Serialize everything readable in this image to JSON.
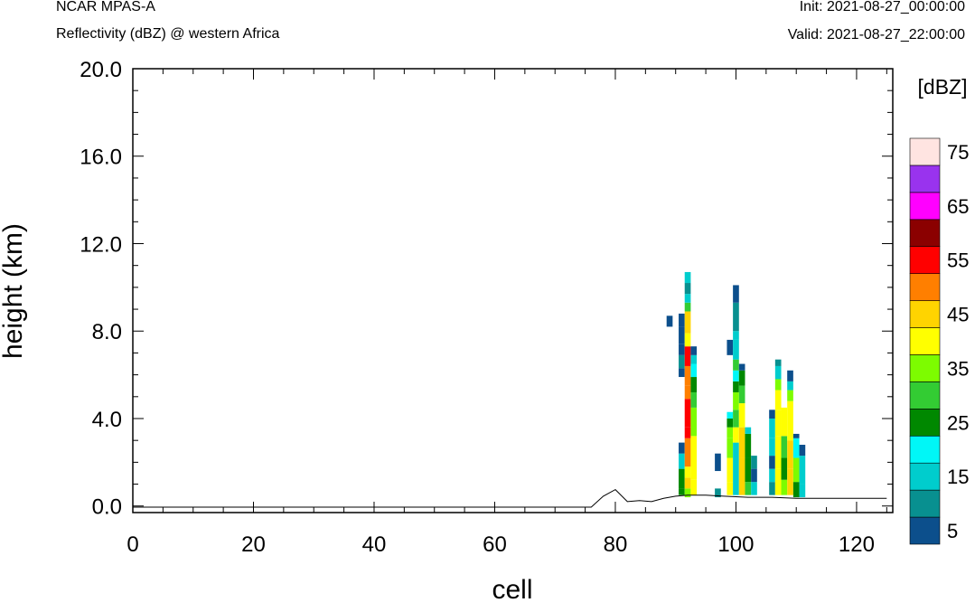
{
  "header": {
    "left_line1": "NCAR MPAS-A",
    "left_line2": "Reflectivity (dBZ) @ western Africa",
    "right_line1": "Init: 2021-08-27_00:00:00",
    "right_line2": "Valid: 2021-08-27_22:00:00"
  },
  "chart_data": {
    "type": "heatmap",
    "xlabel": "cell",
    "ylabel": "height (km)",
    "xlim": [
      0,
      126
    ],
    "ylim": [
      -0.3,
      20.0
    ],
    "x_ticks": [
      0,
      20,
      40,
      60,
      80,
      100,
      120
    ],
    "x_tick_labels": [
      "0",
      "20",
      "40",
      "60",
      "80",
      "100",
      "120"
    ],
    "y_ticks": [
      0,
      4,
      8,
      12,
      16,
      20
    ],
    "y_tick_labels": [
      "0.0",
      "4.0",
      "8.0",
      "12.0",
      "16.0",
      "20.0"
    ],
    "grid": false,
    "colorbar": {
      "unit_label": "[dBZ]",
      "levels": [
        5,
        10,
        15,
        20,
        25,
        30,
        35,
        40,
        45,
        50,
        55,
        60,
        65,
        70,
        75
      ],
      "colors": [
        "#0c4f8c",
        "#089090",
        "#00cdcd",
        "#00f7f7",
        "#008800",
        "#33cc33",
        "#7dfc00",
        "#ffff00",
        "#ffd400",
        "#ff7f00",
        "#ff0000",
        "#8b0000",
        "#ff00ff",
        "#9933ee",
        "#ffe4e1"
      ],
      "tick_labels": [
        "5",
        "15",
        "25",
        "35",
        "45",
        "55",
        "65",
        "75"
      ]
    },
    "terrain": [
      [
        0,
        -0.05
      ],
      [
        76,
        -0.05
      ],
      [
        78,
        0.45
      ],
      [
        80,
        0.75
      ],
      [
        82,
        0.2
      ],
      [
        84,
        0.25
      ],
      [
        86,
        0.2
      ],
      [
        88,
        0.35
      ],
      [
        90,
        0.45
      ],
      [
        92,
        0.5
      ],
      [
        95,
        0.5
      ],
      [
        98,
        0.45
      ],
      [
        102,
        0.4
      ],
      [
        106,
        0.4
      ],
      [
        110,
        0.35
      ],
      [
        115,
        0.35
      ],
      [
        120,
        0.35
      ],
      [
        125,
        0.35
      ]
    ],
    "reflectivity_columns": [
      {
        "x": 89,
        "cells": [
          [
            8.2,
            8.7,
            5
          ]
        ]
      },
      {
        "x": 91,
        "cells": [
          [
            0.5,
            0.8,
            25
          ],
          [
            0.8,
            1.7,
            25
          ],
          [
            1.7,
            2.4,
            15
          ],
          [
            2.4,
            2.9,
            5
          ],
          [
            5.9,
            6.3,
            5
          ],
          [
            6.3,
            6.9,
            10
          ],
          [
            6.9,
            7.4,
            5
          ],
          [
            7.4,
            8.2,
            5
          ],
          [
            8.2,
            8.8,
            5
          ]
        ]
      },
      {
        "x": 92,
        "cells": [
          [
            0.4,
            0.8,
            35
          ],
          [
            0.8,
            1.3,
            45
          ],
          [
            1.3,
            1.8,
            40
          ],
          [
            1.8,
            3.1,
            50
          ],
          [
            3.1,
            3.6,
            55
          ],
          [
            3.6,
            4.9,
            55
          ],
          [
            4.9,
            5.5,
            50
          ],
          [
            5.5,
            6.4,
            50
          ],
          [
            6.4,
            7.3,
            55
          ],
          [
            7.3,
            7.9,
            40
          ],
          [
            7.9,
            8.9,
            45
          ],
          [
            8.9,
            9.3,
            30
          ],
          [
            9.3,
            9.7,
            15
          ],
          [
            9.7,
            10.2,
            10
          ],
          [
            10.2,
            10.7,
            15
          ]
        ]
      },
      {
        "x": 93,
        "cells": [
          [
            0.5,
            1.2,
            40
          ],
          [
            1.2,
            3.2,
            40
          ],
          [
            3.2,
            4.5,
            35
          ],
          [
            4.5,
            5.2,
            30
          ],
          [
            5.2,
            5.9,
            25
          ],
          [
            5.9,
            6.5,
            20
          ],
          [
            6.5,
            6.9,
            15
          ],
          [
            6.9,
            7.3,
            5
          ]
        ]
      },
      {
        "x": 97,
        "cells": [
          [
            1.6,
            2.4,
            5
          ],
          [
            0.4,
            0.8,
            10
          ]
        ]
      },
      {
        "x": 99,
        "cells": [
          [
            0.5,
            1.1,
            40
          ],
          [
            1.1,
            2.2,
            40
          ],
          [
            2.2,
            3.1,
            35
          ],
          [
            3.1,
            3.6,
            35
          ],
          [
            3.6,
            4.0,
            25
          ],
          [
            4.0,
            4.3,
            20
          ],
          [
            6.9,
            7.6,
            5
          ]
        ]
      },
      {
        "x": 100,
        "cells": [
          [
            0.5,
            2.9,
            15
          ],
          [
            2.9,
            3.6,
            40
          ],
          [
            3.6,
            4.4,
            30
          ],
          [
            4.4,
            5.2,
            35
          ],
          [
            5.2,
            5.7,
            25
          ],
          [
            5.7,
            6.2,
            20
          ],
          [
            6.2,
            6.7,
            30
          ],
          [
            6.7,
            7.6,
            15
          ],
          [
            7.6,
            8.0,
            15
          ],
          [
            8.0,
            9.3,
            10
          ],
          [
            9.3,
            10.1,
            5
          ]
        ]
      },
      {
        "x": 101,
        "cells": [
          [
            0.5,
            2.2,
            45
          ],
          [
            2.2,
            3.6,
            45
          ],
          [
            3.6,
            4.7,
            40
          ],
          [
            4.7,
            5.5,
            30
          ],
          [
            5.5,
            6.2,
            25
          ],
          [
            6.2,
            6.5,
            5
          ]
        ]
      },
      {
        "x": 102,
        "cells": [
          [
            0.5,
            1.1,
            30
          ],
          [
            1.1,
            2.2,
            25
          ],
          [
            2.2,
            3.3,
            25
          ],
          [
            3.3,
            3.6,
            15
          ]
        ]
      },
      {
        "x": 103,
        "cells": [
          [
            0.5,
            1.1,
            15
          ],
          [
            1.1,
            1.7,
            5
          ],
          [
            1.7,
            2.3,
            10
          ]
        ]
      },
      {
        "x": 106,
        "cells": [
          [
            0.5,
            1.1,
            10
          ],
          [
            1.1,
            1.7,
            15
          ],
          [
            1.7,
            2.3,
            5
          ],
          [
            2.3,
            3.1,
            15
          ],
          [
            3.1,
            4.0,
            15
          ],
          [
            4.0,
            4.4,
            5
          ]
        ]
      },
      {
        "x": 107,
        "cells": [
          [
            0.5,
            1.7,
            40
          ],
          [
            1.7,
            3.2,
            40
          ],
          [
            3.2,
            4.4,
            40
          ],
          [
            4.4,
            5.3,
            40
          ],
          [
            5.3,
            5.8,
            35
          ],
          [
            5.8,
            6.4,
            15
          ],
          [
            6.4,
            6.7,
            10
          ]
        ]
      },
      {
        "x": 108,
        "cells": [
          [
            0.5,
            1.2,
            35
          ],
          [
            1.2,
            2.2,
            25
          ],
          [
            2.2,
            3.2,
            30
          ],
          [
            3.2,
            4.5,
            40
          ]
        ]
      },
      {
        "x": 109,
        "cells": [
          [
            0.5,
            1.7,
            45
          ],
          [
            1.7,
            3.0,
            45
          ],
          [
            3.0,
            4.8,
            40
          ],
          [
            4.8,
            5.3,
            35
          ],
          [
            5.3,
            5.7,
            15
          ],
          [
            5.7,
            6.2,
            5
          ]
        ]
      },
      {
        "x": 110,
        "cells": [
          [
            0.4,
            1.1,
            25
          ],
          [
            1.1,
            2.2,
            35
          ],
          [
            2.2,
            3.1,
            20
          ],
          [
            3.1,
            3.3,
            5
          ]
        ]
      },
      {
        "x": 111,
        "cells": [
          [
            0.4,
            1.0,
            15
          ],
          [
            1.0,
            2.3,
            15
          ],
          [
            2.3,
            2.8,
            5
          ]
        ]
      }
    ]
  }
}
